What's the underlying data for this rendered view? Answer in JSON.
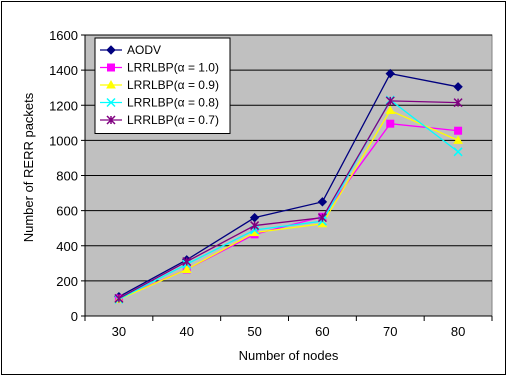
{
  "chart_data": {
    "type": "line",
    "xlabel": "Number of nodes",
    "ylabel": "Number of RERR packets",
    "categories": [
      "30",
      "40",
      "50",
      "60",
      "70",
      "80"
    ],
    "ylim": [
      0,
      1600
    ],
    "yticks": [
      0,
      200,
      400,
      600,
      800,
      1000,
      1200,
      1400,
      1600
    ],
    "grid": "horizontal",
    "legend_position": "top-left",
    "plot_background": "#c0c0c0",
    "series": [
      {
        "name": "AODV",
        "color": "#00007f",
        "marker": "diamond",
        "values": [
          110,
          320,
          560,
          650,
          1380,
          1305
        ]
      },
      {
        "name": "LRRLBP(α = 1.0)",
        "color": "#ff00ff",
        "marker": "square",
        "values": [
          100,
          265,
          465,
          565,
          1095,
          1055
        ]
      },
      {
        "name": "LRRLBP(α = 0.9)",
        "color": "#ffff00",
        "marker": "triangle",
        "values": [
          95,
          265,
          475,
          525,
          1170,
          1000
        ]
      },
      {
        "name": "LRRLBP(α = 0.8)",
        "color": "#00ffff",
        "marker": "x",
        "values": [
          95,
          295,
          490,
          540,
          1230,
          935
        ]
      },
      {
        "name": "LRRLBP(α = 0.7)",
        "color": "#800080",
        "marker": "star",
        "values": [
          100,
          310,
          515,
          560,
          1225,
          1215
        ]
      }
    ]
  }
}
